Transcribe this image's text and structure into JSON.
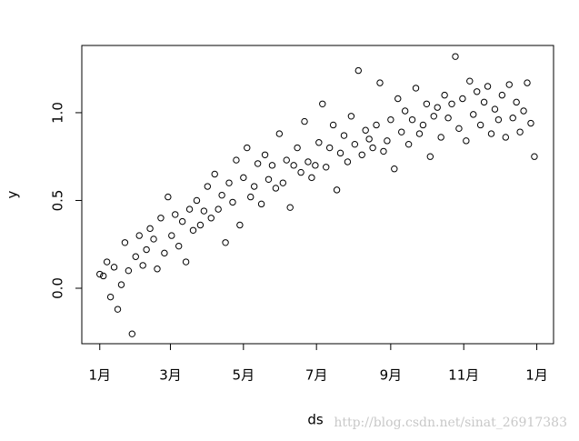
{
  "chart_data": {
    "type": "scatter",
    "x_label": "ds",
    "y_label": "y",
    "watermark": "http://blog.csdn.net/sinat_26917383",
    "color": "#000000",
    "marker": "open-circle",
    "xlim": [
      -15,
      379
    ],
    "ylim": [
      -0.316,
      1.383
    ],
    "xticks": [
      {
        "value": 0,
        "label": "1月"
      },
      {
        "value": 59,
        "label": "3月"
      },
      {
        "value": 120,
        "label": "5月"
      },
      {
        "value": 181,
        "label": "7月"
      },
      {
        "value": 243,
        "label": "9月"
      },
      {
        "value": 304,
        "label": "11月"
      },
      {
        "value": 365,
        "label": "1月"
      }
    ],
    "yticks": [
      {
        "value": 0,
        "label": "0.0"
      },
      0.5,
      {
        "value": 1,
        "label": "1.0"
      }
    ],
    "x": [
      0,
      3,
      6,
      9,
      12,
      15,
      18,
      21,
      24,
      27,
      30,
      33,
      36,
      39,
      42,
      45,
      48,
      51,
      54,
      57,
      60,
      63,
      66,
      69,
      72,
      75,
      78,
      81,
      84,
      87,
      90,
      93,
      96,
      99,
      102,
      105,
      108,
      111,
      114,
      117,
      120,
      123,
      126,
      129,
      132,
      135,
      138,
      141,
      144,
      147,
      150,
      153,
      156,
      159,
      162,
      165,
      168,
      171,
      174,
      177,
      180,
      183,
      186,
      189,
      192,
      195,
      198,
      201,
      204,
      207,
      210,
      213,
      216,
      219,
      222,
      225,
      228,
      231,
      234,
      237,
      240,
      243,
      246,
      249,
      252,
      255,
      258,
      261,
      264,
      267,
      270,
      273,
      276,
      279,
      282,
      285,
      288,
      291,
      294,
      297,
      300,
      303,
      306,
      309,
      312,
      315,
      318,
      321,
      324,
      327,
      330,
      333,
      336,
      339,
      342,
      345,
      348,
      351,
      354,
      357,
      360,
      363
    ],
    "values": [
      0.08,
      0.07,
      0.15,
      -0.05,
      0.12,
      -0.12,
      0.02,
      0.26,
      0.1,
      -0.26,
      0.18,
      0.3,
      0.13,
      0.22,
      0.34,
      0.28,
      0.11,
      0.4,
      0.2,
      0.52,
      0.3,
      0.42,
      0.24,
      0.38,
      0.15,
      0.45,
      0.33,
      0.5,
      0.36,
      0.44,
      0.58,
      0.4,
      0.65,
      0.45,
      0.53,
      0.26,
      0.6,
      0.49,
      0.73,
      0.36,
      0.63,
      0.8,
      0.52,
      0.58,
      0.71,
      0.48,
      0.76,
      0.62,
      0.7,
      0.57,
      0.88,
      0.6,
      0.73,
      0.46,
      0.7,
      0.8,
      0.66,
      0.95,
      0.72,
      0.63,
      0.7,
      0.83,
      1.05,
      0.69,
      0.8,
      0.93,
      0.56,
      0.77,
      0.87,
      0.72,
      0.98,
      0.82,
      1.24,
      0.76,
      0.9,
      0.85,
      0.8,
      0.93,
      1.17,
      0.78,
      0.84,
      0.96,
      0.68,
      1.08,
      0.89,
      1.01,
      0.82,
      0.96,
      1.14,
      0.88,
      0.93,
      1.05,
      0.75,
      0.98,
      1.03,
      0.86,
      1.1,
      0.97,
      1.05,
      1.32,
      0.91,
      1.08,
      0.84,
      1.18,
      0.99,
      1.12,
      0.93,
      1.06,
      1.15,
      0.88,
      1.02,
      0.96,
      1.1,
      0.86,
      1.16,
      0.97,
      1.06,
      0.89,
      1.01,
      1.17,
      0.94,
      0.75
    ]
  }
}
